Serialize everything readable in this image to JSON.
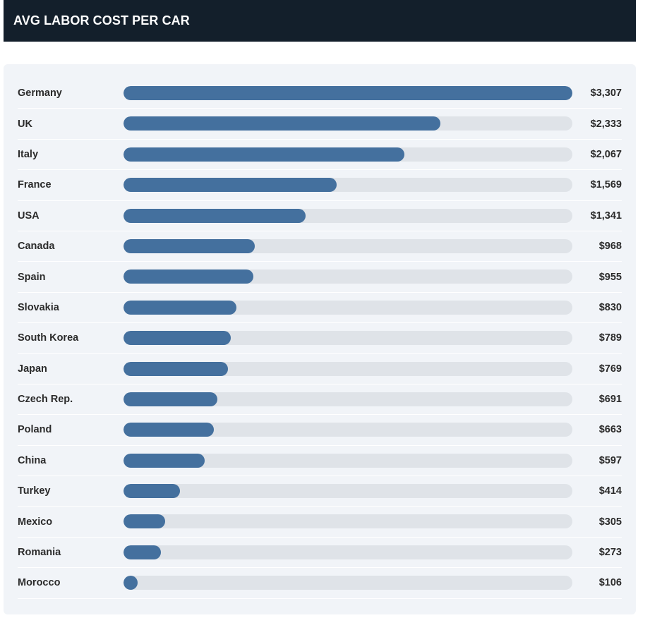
{
  "header": {
    "title": "AVG LABOR COST PER CAR"
  },
  "chart_data": {
    "type": "bar",
    "orientation": "horizontal",
    "title": "AVG LABOR COST PER CAR",
    "xlim": [
      0,
      3307
    ],
    "grid": false,
    "colors": {
      "bar": "#44709e",
      "track": "#dfe3e8"
    },
    "categories": [
      "Germany",
      "UK",
      "Italy",
      "France",
      "USA",
      "Canada",
      "Spain",
      "Slovakia",
      "South Korea",
      "Japan",
      "Czech Rep.",
      "Poland",
      "China",
      "Turkey",
      "Mexico",
      "Romania",
      "Morocco"
    ],
    "values": [
      3307,
      2333,
      2067,
      1569,
      1341,
      968,
      955,
      830,
      789,
      769,
      691,
      663,
      597,
      414,
      305,
      273,
      106
    ],
    "data_labels": [
      "$3,307",
      "$2,333",
      "$2,067",
      "$1,569",
      "$1,341",
      "$968",
      "$955",
      "$830",
      "$789",
      "$769",
      "$691",
      "$663",
      "$597",
      "$414",
      "$305",
      "$273",
      "$106"
    ]
  }
}
